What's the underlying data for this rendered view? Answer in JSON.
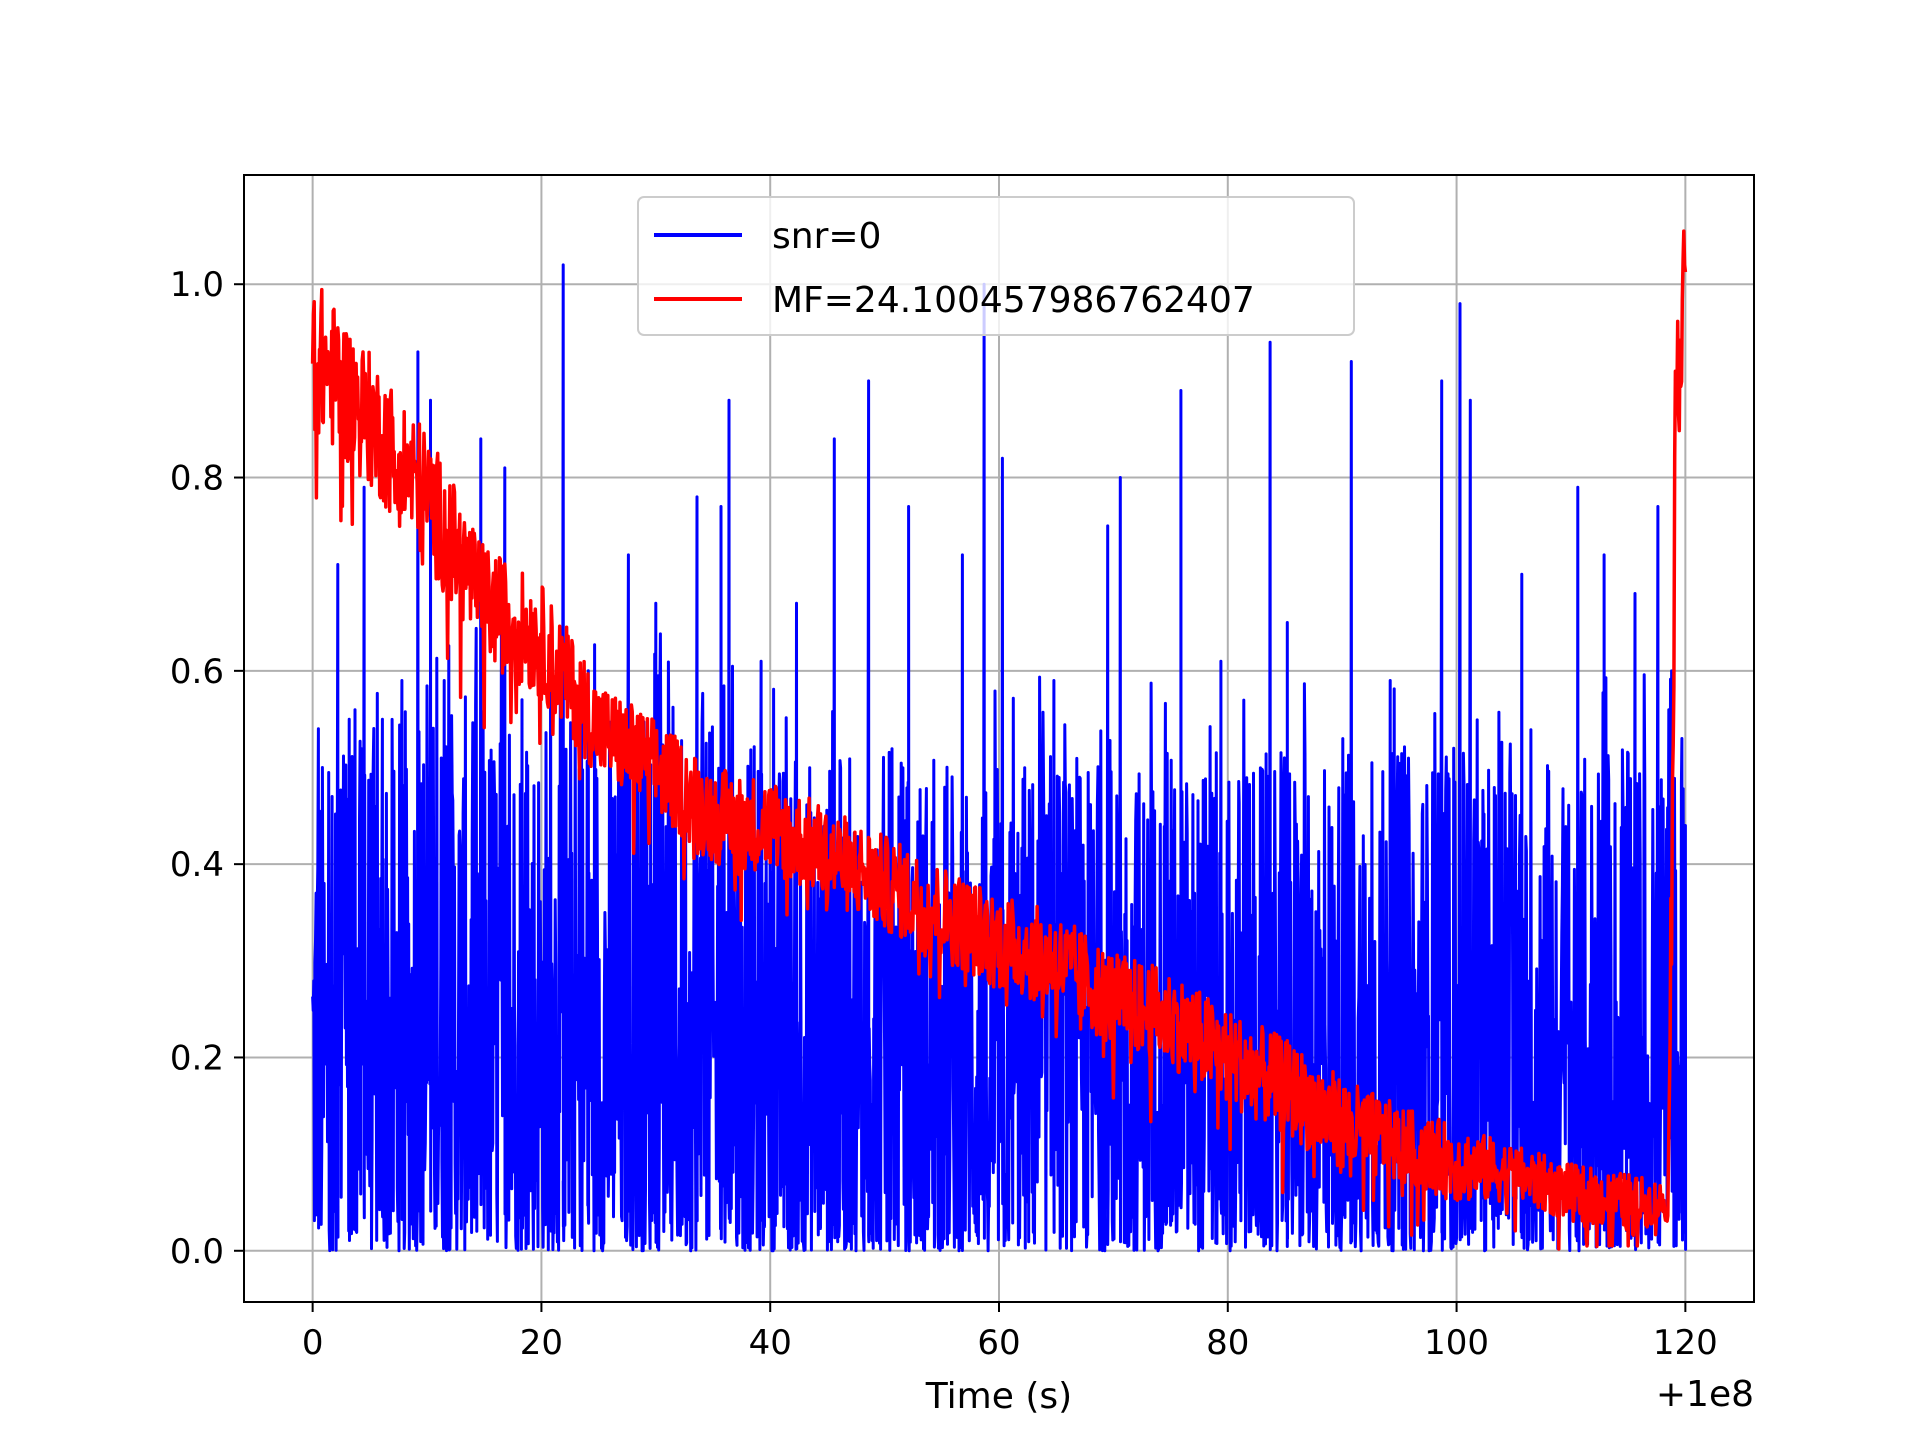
{
  "chart_data": {
    "type": "line",
    "title": "",
    "xlabel": "Time (s)",
    "ylabel": "",
    "x_offset_label": "+1e8",
    "xlim": [
      -6,
      126
    ],
    "ylim": [
      -0.053,
      1.113
    ],
    "xticks": [
      0,
      20,
      40,
      60,
      80,
      100,
      120
    ],
    "xtick_labels": [
      "0",
      "20",
      "40",
      "60",
      "80",
      "100",
      "120"
    ],
    "yticks": [
      0.0,
      0.2,
      0.4,
      0.6,
      0.8,
      1.0
    ],
    "ytick_labels": [
      "0.0",
      "0.2",
      "0.4",
      "0.6",
      "0.8",
      "1.0"
    ],
    "grid": true,
    "legend_position": "top-center",
    "series": [
      {
        "name": "snr=0",
        "color": "#0000ff",
        "description_of_shape": "dense noise between 0 and ~0.5 with tall spikes up to ~1.02 across 0–120 s",
        "envelope_x": [
          0,
          10,
          20,
          30,
          40,
          50,
          60,
          70,
          80,
          90,
          100,
          110,
          120
        ],
        "envelope_typical_high": [
          0.45,
          0.5,
          0.5,
          0.5,
          0.45,
          0.45,
          0.45,
          0.45,
          0.45,
          0.45,
          0.45,
          0.45,
          0.45
        ],
        "spikes": [
          {
            "x": 0.3,
            "y": 0.37
          },
          {
            "x": 0.5,
            "y": 0.54
          },
          {
            "x": 1.7,
            "y": 0.47
          },
          {
            "x": 2.2,
            "y": 0.71
          },
          {
            "x": 3.2,
            "y": 0.55
          },
          {
            "x": 4.5,
            "y": 0.79
          },
          {
            "x": 6.1,
            "y": 0.55
          },
          {
            "x": 7.8,
            "y": 0.59
          },
          {
            "x": 9.2,
            "y": 0.93
          },
          {
            "x": 10.3,
            "y": 0.88
          },
          {
            "x": 11.5,
            "y": 0.59
          },
          {
            "x": 14.7,
            "y": 0.84
          },
          {
            "x": 16.8,
            "y": 0.81
          },
          {
            "x": 18.3,
            "y": 0.57
          },
          {
            "x": 21.9,
            "y": 1.02
          },
          {
            "x": 24.1,
            "y": 0.6
          },
          {
            "x": 27.6,
            "y": 0.72
          },
          {
            "x": 30.0,
            "y": 0.67
          },
          {
            "x": 33.6,
            "y": 0.78
          },
          {
            "x": 35.7,
            "y": 0.77
          },
          {
            "x": 36.4,
            "y": 0.88
          },
          {
            "x": 39.2,
            "y": 0.61
          },
          {
            "x": 42.3,
            "y": 0.67
          },
          {
            "x": 45.6,
            "y": 0.84
          },
          {
            "x": 48.6,
            "y": 0.9
          },
          {
            "x": 52.1,
            "y": 0.77
          },
          {
            "x": 56.8,
            "y": 0.72
          },
          {
            "x": 58.7,
            "y": 1.0
          },
          {
            "x": 60.3,
            "y": 0.82
          },
          {
            "x": 64.8,
            "y": 0.59
          },
          {
            "x": 69.5,
            "y": 0.75
          },
          {
            "x": 70.6,
            "y": 0.8
          },
          {
            "x": 75.9,
            "y": 0.89
          },
          {
            "x": 79.4,
            "y": 0.61
          },
          {
            "x": 83.7,
            "y": 0.94
          },
          {
            "x": 85.2,
            "y": 0.65
          },
          {
            "x": 90.8,
            "y": 0.92
          },
          {
            "x": 94.2,
            "y": 0.59
          },
          {
            "x": 98.7,
            "y": 0.9
          },
          {
            "x": 100.3,
            "y": 0.98
          },
          {
            "x": 101.2,
            "y": 0.88
          },
          {
            "x": 105.7,
            "y": 0.7
          },
          {
            "x": 110.6,
            "y": 0.79
          },
          {
            "x": 112.9,
            "y": 0.72
          },
          {
            "x": 115.6,
            "y": 0.68
          },
          {
            "x": 117.6,
            "y": 0.77
          },
          {
            "x": 119.7,
            "y": 0.53
          },
          {
            "x": 120.0,
            "y": 0.44
          }
        ]
      },
      {
        "name": "MF=24.100457986762407",
        "color": "#ff0000",
        "description_of_shape": "noisy decaying curve from ~1.0 at 0 s to ~0.05 near 118 s, then sharp rise to ~1.06 at 120 s",
        "x": [
          0,
          5,
          10,
          15,
          20,
          25,
          30,
          35,
          40,
          45,
          50,
          55,
          60,
          65,
          70,
          75,
          80,
          85,
          90,
          95,
          100,
          105,
          110,
          115,
          118.5,
          119.2,
          119.6,
          120
        ],
        "y": [
          0.93,
          0.86,
          0.78,
          0.67,
          0.63,
          0.54,
          0.5,
          0.45,
          0.44,
          0.41,
          0.38,
          0.35,
          0.32,
          0.3,
          0.26,
          0.24,
          0.2,
          0.17,
          0.13,
          0.11,
          0.09,
          0.08,
          0.06,
          0.05,
          0.05,
          0.9,
          0.97,
          1.06
        ],
        "noise_amplitude": [
          0.08,
          0.07,
          0.07,
          0.06,
          0.06,
          0.05,
          0.05,
          0.05,
          0.05,
          0.05,
          0.05,
          0.05,
          0.05,
          0.05,
          0.05,
          0.05,
          0.05,
          0.05,
          0.05,
          0.04,
          0.04,
          0.03,
          0.03,
          0.03,
          0.02,
          0.1,
          0.1,
          0.04
        ]
      }
    ]
  }
}
